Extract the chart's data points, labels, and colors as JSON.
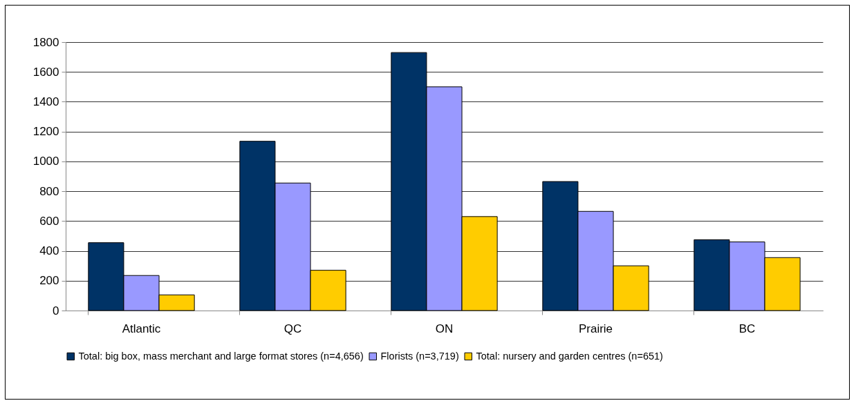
{
  "chart_data": {
    "type": "bar",
    "categories": [
      "Atlantic",
      "QC",
      "ON",
      "Prairie",
      "BC"
    ],
    "series": [
      {
        "name": "Total: big box, mass merchant and large format stores (n=4,656)",
        "color": "#003366",
        "values": [
          455,
          1135,
          1730,
          865,
          475
        ]
      },
      {
        "name": "Florists (n=3,719)",
        "color": "#9999ff",
        "values": [
          235,
          855,
          1500,
          665,
          460
        ]
      },
      {
        "name": "Total: nursery and garden centres (n=651)",
        "color": "#ffcc00",
        "values": [
          105,
          270,
          630,
          300,
          355
        ]
      }
    ],
    "ylim": [
      0,
      1800
    ],
    "yticks": [
      0,
      200,
      400,
      600,
      800,
      1000,
      1200,
      1400,
      1600,
      1800
    ],
    "grid": "y",
    "legend": "bottom"
  }
}
